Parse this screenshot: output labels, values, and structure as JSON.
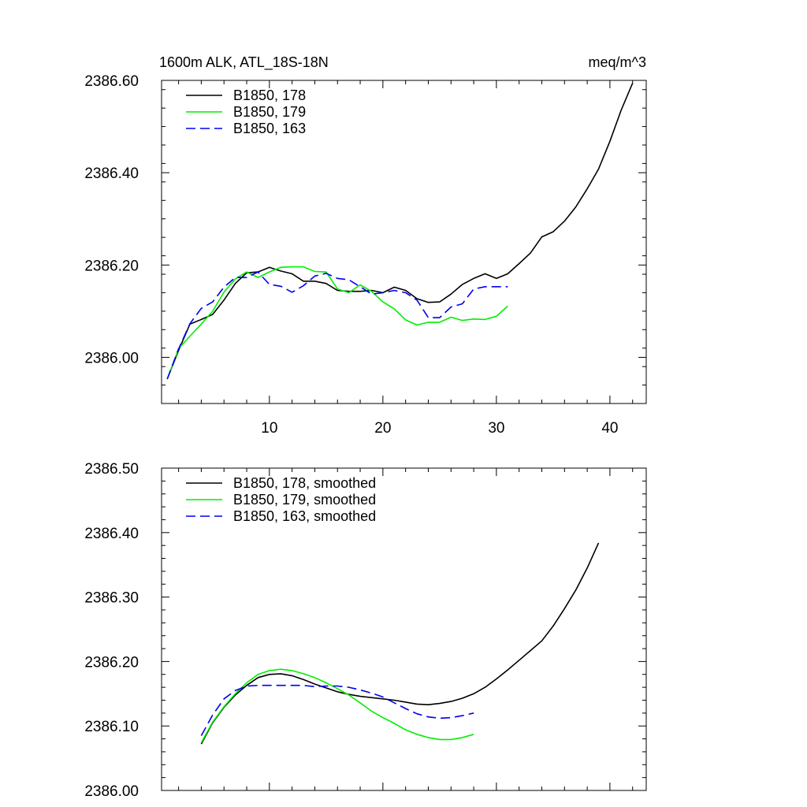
{
  "chart_data": [
    {
      "type": "line",
      "title_left": "1600m ALK, ATL_18S-18N",
      "title_right": "meq/m^3",
      "xlabel": "",
      "ylabel": "",
      "xlim": [
        0.5,
        43.2
      ],
      "ylim": [
        2385.9,
        2386.6
      ],
      "xticks": [
        10,
        20,
        30,
        40
      ],
      "xtick_labels": [
        "10",
        "20",
        "30",
        "40"
      ],
      "yticks": [
        2386.0,
        2386.2,
        2386.4,
        2386.6
      ],
      "ytick_labels": [
        "2386.00",
        "2386.20",
        "2386.40",
        "2386.60"
      ],
      "grid": false,
      "legend_position": "top-left",
      "series": [
        {
          "name": "B1850, 178",
          "color": "#000000",
          "dash": "solid",
          "x": [
            1,
            2,
            3,
            4,
            5,
            6,
            7,
            8,
            9,
            10,
            11,
            12,
            13,
            14,
            15,
            16,
            17,
            18,
            19,
            20,
            21,
            22,
            23,
            24,
            25,
            26,
            27,
            28,
            29,
            30,
            31,
            32,
            33,
            34,
            35,
            36,
            37,
            38,
            39,
            40,
            41,
            42
          ],
          "y": [
            2385.953,
            2386.015,
            2386.072,
            2386.082,
            2386.093,
            2386.124,
            2386.16,
            2386.183,
            2386.185,
            2386.195,
            2386.187,
            2386.181,
            2386.165,
            2386.165,
            2386.16,
            2386.145,
            2386.143,
            2386.143,
            2386.145,
            2386.14,
            2386.152,
            2386.145,
            2386.127,
            2386.119,
            2386.12,
            2386.137,
            2386.158,
            2386.171,
            2386.181,
            2386.171,
            2386.181,
            2386.203,
            2386.226,
            2386.261,
            2386.272,
            2386.295,
            2386.326,
            2386.365,
            2386.408,
            2386.468,
            2386.536,
            2386.594
          ]
        },
        {
          "name": "B1850, 179",
          "color": "#00ee00",
          "dash": "solid",
          "x": [
            1,
            2,
            3,
            4,
            5,
            6,
            7,
            8,
            9,
            10,
            11,
            12,
            13,
            14,
            15,
            16,
            17,
            18,
            19,
            20,
            21,
            22,
            23,
            24,
            25,
            26,
            27,
            28,
            29,
            30,
            31
          ],
          "y": [
            2385.953,
            2386.019,
            2386.046,
            2386.072,
            2386.1,
            2386.141,
            2386.17,
            2386.185,
            2386.173,
            2386.185,
            2386.195,
            2386.196,
            2386.196,
            2386.186,
            2386.185,
            2386.148,
            2386.14,
            2386.157,
            2386.143,
            2386.12,
            2386.105,
            2386.081,
            2386.07,
            2386.076,
            2386.076,
            2386.087,
            2386.08,
            2386.083,
            2386.082,
            2386.089,
            2386.111
          ]
        },
        {
          "name": "B1850, 163",
          "color": "#0000ee",
          "dash": "dashed",
          "x": [
            1,
            2,
            3,
            4,
            5,
            6,
            7,
            8,
            9,
            10,
            11,
            12,
            13,
            14,
            15,
            16,
            17,
            18,
            19,
            20,
            21,
            22,
            23,
            24,
            25,
            26,
            27,
            28,
            29,
            30,
            31
          ],
          "y": [
            2385.953,
            2386.018,
            2386.073,
            2386.106,
            2386.12,
            2386.152,
            2386.173,
            2386.173,
            2386.185,
            2386.158,
            2386.154,
            2386.141,
            2386.155,
            2386.176,
            2386.182,
            2386.171,
            2386.168,
            2386.153,
            2386.137,
            2386.14,
            2386.145,
            2386.14,
            2386.124,
            2386.086,
            2386.086,
            2386.109,
            2386.116,
            2386.148,
            2386.153,
            2386.153,
            2386.153
          ]
        }
      ]
    },
    {
      "type": "line",
      "title_left": "",
      "title_right": "",
      "xlabel": "",
      "ylabel": "",
      "xlim": [
        0.5,
        43.2
      ],
      "ylim": [
        2386.0,
        2386.5
      ],
      "xticks": [
        10,
        20,
        30,
        40
      ],
      "xtick_labels": [],
      "yticks": [
        2386.0,
        2386.1,
        2386.2,
        2386.3,
        2386.4,
        2386.5
      ],
      "ytick_labels": [
        "2386.00",
        "2386.10",
        "2386.20",
        "2386.30",
        "2386.40",
        "2386.50"
      ],
      "grid": false,
      "legend_position": "top-left",
      "series": [
        {
          "name": "B1850, 178, smoothed",
          "color": "#000000",
          "dash": "solid",
          "x": [
            4,
            5,
            6,
            7,
            8,
            9,
            10,
            11,
            12,
            13,
            14,
            15,
            16,
            17,
            18,
            19,
            20,
            21,
            22,
            23,
            24,
            25,
            26,
            27,
            28,
            29,
            30,
            31,
            32,
            33,
            34,
            35,
            36,
            37,
            38,
            39
          ],
          "y": [
            2386.072,
            2386.105,
            2386.129,
            2386.148,
            2386.163,
            2386.175,
            2386.18,
            2386.181,
            2386.178,
            2386.172,
            2386.165,
            2386.159,
            2386.153,
            2386.149,
            2386.146,
            2386.144,
            2386.142,
            2386.14,
            2386.137,
            2386.134,
            2386.133,
            2386.135,
            2386.138,
            2386.143,
            2386.15,
            2386.16,
            2386.173,
            2386.187,
            2386.202,
            2386.217,
            2386.232,
            2386.255,
            2386.282,
            2386.311,
            2386.345,
            2386.384
          ]
        },
        {
          "name": "B1850, 179, smoothed",
          "color": "#00ee00",
          "dash": "solid",
          "x": [
            4,
            5,
            6,
            7,
            8,
            9,
            10,
            11,
            12,
            13,
            14,
            15,
            16,
            17,
            18,
            19,
            20,
            21,
            22,
            23,
            24,
            25,
            26,
            27,
            28
          ],
          "y": [
            2386.074,
            2386.106,
            2386.13,
            2386.15,
            2386.167,
            2386.18,
            2386.186,
            2386.188,
            2386.186,
            2386.181,
            2386.175,
            2386.167,
            2386.158,
            2386.148,
            2386.136,
            2386.123,
            2386.113,
            2386.104,
            2386.094,
            2386.087,
            2386.082,
            2386.079,
            2386.079,
            2386.082,
            2386.087
          ]
        },
        {
          "name": "B1850, 163, smoothed",
          "color": "#0000ee",
          "dash": "dashed",
          "x": [
            4,
            5,
            6,
            7,
            8,
            9,
            10,
            11,
            12,
            13,
            14,
            15,
            16,
            17,
            18,
            19,
            20,
            21,
            22,
            23,
            24,
            25,
            26,
            27,
            28
          ],
          "y": [
            2386.085,
            2386.117,
            2386.142,
            2386.155,
            2386.162,
            2386.163,
            2386.163,
            2386.163,
            2386.163,
            2386.163,
            2386.161,
            2386.162,
            2386.162,
            2386.16,
            2386.156,
            2386.151,
            2386.145,
            2386.136,
            2386.127,
            2386.119,
            2386.114,
            2386.112,
            2386.113,
            2386.116,
            2386.12
          ]
        }
      ]
    }
  ]
}
